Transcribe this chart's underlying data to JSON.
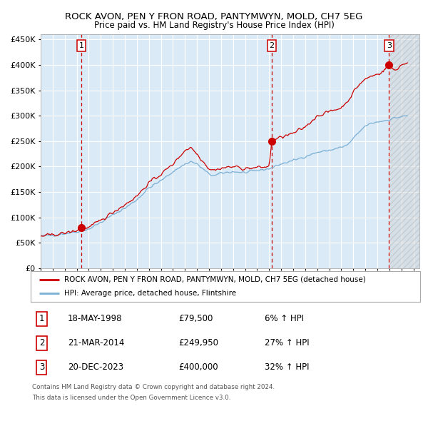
{
  "title": "ROCK AVON, PEN Y FRON ROAD, PANTYMWYN, MOLD, CH7 5EG",
  "subtitle": "Price paid vs. HM Land Registry's House Price Index (HPI)",
  "legend_line1": "ROCK AVON, PEN Y FRON ROAD, PANTYMWYN, MOLD, CH7 5EG (detached house)",
  "legend_line2": "HPI: Average price, detached house, Flintshire",
  "transactions": [
    {
      "num": 1,
      "date": "18-MAY-1998",
      "price": 79500,
      "pct": "6%",
      "dir": "↑"
    },
    {
      "num": 2,
      "date": "21-MAR-2014",
      "price": 249950,
      "pct": "27%",
      "dir": "↑"
    },
    {
      "num": 3,
      "date": "20-DEC-2023",
      "price": 400000,
      "pct": "32%",
      "dir": "↑"
    }
  ],
  "footer_line1": "Contains HM Land Registry data © Crown copyright and database right 2024.",
  "footer_line2": "This data is licensed under the Open Government Licence v3.0.",
  "transaction_dates_decimal": [
    1998.38,
    2014.22,
    2023.97
  ],
  "transaction_prices": [
    79500,
    249950,
    400000
  ],
  "hpi_line_color": "#7bafd4",
  "price_line_color": "#cc0000",
  "dot_color": "#cc0000",
  "plot_bg": "#daeaf6",
  "grid_color": "#ffffff",
  "ylim": [
    0,
    460000
  ],
  "xlim_start": 1995.0,
  "xlim_end": 2026.5
}
